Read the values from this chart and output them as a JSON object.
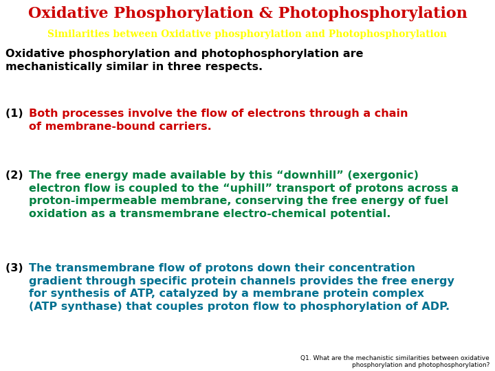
{
  "title": "Oxidative Phosphorylation & Photophosphorylation",
  "title_color": "#cc0000",
  "title_fontsize": 16,
  "subtitle": "Similarities between Oxidative phosphorylation and Photophosphorylation",
  "subtitle_color": "#ffff00",
  "subtitle_bg": "#002060",
  "subtitle_fontsize": 10,
  "bg_color": "#ffffff",
  "intro_text": "Oxidative phosphorylation and photophosphorylation are\nmechanistically similar in three respects.",
  "intro_color": "#000000",
  "intro_fontsize": 11.5,
  "point1_num": "(1) ",
  "point1_num_color": "#000000",
  "point1_text": "Both processes involve the flow of electrons through a chain\nof membrane-bound carriers.",
  "point1_color": "#cc0000",
  "point1_fontsize": 11.5,
  "point2_num": "(2) ",
  "point2_num_color": "#000000",
  "point2_text": "The free energy made available by this “downhill” (exergonic)\nelectron flow is coupled to the “uphill” transport of protons across a\nproton-impermeable membrane, conserving the free energy of fuel\noxidation as a transmembrane electro-chemical potential.",
  "point2_color": "#008040",
  "point2_fontsize": 11.5,
  "point3_num": "(3) ",
  "point3_num_color": "#000000",
  "point3_text": "The transmembrane flow of protons down their concentration\ngradient through specific protein channels provides the free energy\nfor synthesis of ATP, catalyzed by a membrane protein complex\n(ATP synthase) that couples proton flow to phosphorylation of ADP.",
  "point3_color": "#007090",
  "point3_fontsize": 11.5,
  "footnote": "Q1. What are the mechanistic similarities between oxidative\nphosphorylation and photophosphorylation?",
  "footnote_color": "#000000",
  "footnote_fontsize": 6.5
}
